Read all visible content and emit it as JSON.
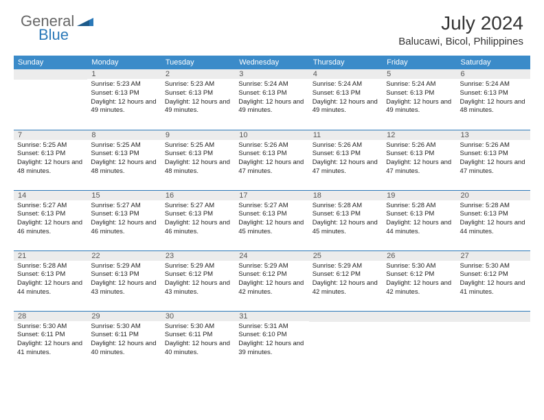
{
  "logo": {
    "text_general": "General",
    "text_blue": "Blue"
  },
  "header": {
    "month_title": "July 2024",
    "location": "Balucawi, Bicol, Philippines"
  },
  "colors": {
    "header_bg": "#3b8bc9",
    "header_text": "#ffffff",
    "row_border": "#2a78b8",
    "daynum_bg": "#ececec",
    "body_text": "#222222",
    "logo_gray": "#666666",
    "logo_blue": "#2a78b8"
  },
  "fonts": {
    "month_title_size": 28,
    "location_size": 15,
    "th_size": 11,
    "daynum_size": 11,
    "body_size": 9.5
  },
  "day_labels": [
    "Sunday",
    "Monday",
    "Tuesday",
    "Wednesday",
    "Thursday",
    "Friday",
    "Saturday"
  ],
  "weeks": [
    [
      null,
      {
        "n": "1",
        "sunrise": "5:23 AM",
        "sunset": "6:13 PM",
        "daylight": "12 hours and 49 minutes."
      },
      {
        "n": "2",
        "sunrise": "5:23 AM",
        "sunset": "6:13 PM",
        "daylight": "12 hours and 49 minutes."
      },
      {
        "n": "3",
        "sunrise": "5:24 AM",
        "sunset": "6:13 PM",
        "daylight": "12 hours and 49 minutes."
      },
      {
        "n": "4",
        "sunrise": "5:24 AM",
        "sunset": "6:13 PM",
        "daylight": "12 hours and 49 minutes."
      },
      {
        "n": "5",
        "sunrise": "5:24 AM",
        "sunset": "6:13 PM",
        "daylight": "12 hours and 49 minutes."
      },
      {
        "n": "6",
        "sunrise": "5:24 AM",
        "sunset": "6:13 PM",
        "daylight": "12 hours and 48 minutes."
      }
    ],
    [
      {
        "n": "7",
        "sunrise": "5:25 AM",
        "sunset": "6:13 PM",
        "daylight": "12 hours and 48 minutes."
      },
      {
        "n": "8",
        "sunrise": "5:25 AM",
        "sunset": "6:13 PM",
        "daylight": "12 hours and 48 minutes."
      },
      {
        "n": "9",
        "sunrise": "5:25 AM",
        "sunset": "6:13 PM",
        "daylight": "12 hours and 48 minutes."
      },
      {
        "n": "10",
        "sunrise": "5:26 AM",
        "sunset": "6:13 PM",
        "daylight": "12 hours and 47 minutes."
      },
      {
        "n": "11",
        "sunrise": "5:26 AM",
        "sunset": "6:13 PM",
        "daylight": "12 hours and 47 minutes."
      },
      {
        "n": "12",
        "sunrise": "5:26 AM",
        "sunset": "6:13 PM",
        "daylight": "12 hours and 47 minutes."
      },
      {
        "n": "13",
        "sunrise": "5:26 AM",
        "sunset": "6:13 PM",
        "daylight": "12 hours and 47 minutes."
      }
    ],
    [
      {
        "n": "14",
        "sunrise": "5:27 AM",
        "sunset": "6:13 PM",
        "daylight": "12 hours and 46 minutes."
      },
      {
        "n": "15",
        "sunrise": "5:27 AM",
        "sunset": "6:13 PM",
        "daylight": "12 hours and 46 minutes."
      },
      {
        "n": "16",
        "sunrise": "5:27 AM",
        "sunset": "6:13 PM",
        "daylight": "12 hours and 46 minutes."
      },
      {
        "n": "17",
        "sunrise": "5:27 AM",
        "sunset": "6:13 PM",
        "daylight": "12 hours and 45 minutes."
      },
      {
        "n": "18",
        "sunrise": "5:28 AM",
        "sunset": "6:13 PM",
        "daylight": "12 hours and 45 minutes."
      },
      {
        "n": "19",
        "sunrise": "5:28 AM",
        "sunset": "6:13 PM",
        "daylight": "12 hours and 44 minutes."
      },
      {
        "n": "20",
        "sunrise": "5:28 AM",
        "sunset": "6:13 PM",
        "daylight": "12 hours and 44 minutes."
      }
    ],
    [
      {
        "n": "21",
        "sunrise": "5:28 AM",
        "sunset": "6:13 PM",
        "daylight": "12 hours and 44 minutes."
      },
      {
        "n": "22",
        "sunrise": "5:29 AM",
        "sunset": "6:13 PM",
        "daylight": "12 hours and 43 minutes."
      },
      {
        "n": "23",
        "sunrise": "5:29 AM",
        "sunset": "6:12 PM",
        "daylight": "12 hours and 43 minutes."
      },
      {
        "n": "24",
        "sunrise": "5:29 AM",
        "sunset": "6:12 PM",
        "daylight": "12 hours and 42 minutes."
      },
      {
        "n": "25",
        "sunrise": "5:29 AM",
        "sunset": "6:12 PM",
        "daylight": "12 hours and 42 minutes."
      },
      {
        "n": "26",
        "sunrise": "5:30 AM",
        "sunset": "6:12 PM",
        "daylight": "12 hours and 42 minutes."
      },
      {
        "n": "27",
        "sunrise": "5:30 AM",
        "sunset": "6:12 PM",
        "daylight": "12 hours and 41 minutes."
      }
    ],
    [
      {
        "n": "28",
        "sunrise": "5:30 AM",
        "sunset": "6:11 PM",
        "daylight": "12 hours and 41 minutes."
      },
      {
        "n": "29",
        "sunrise": "5:30 AM",
        "sunset": "6:11 PM",
        "daylight": "12 hours and 40 minutes."
      },
      {
        "n": "30",
        "sunrise": "5:30 AM",
        "sunset": "6:11 PM",
        "daylight": "12 hours and 40 minutes."
      },
      {
        "n": "31",
        "sunrise": "5:31 AM",
        "sunset": "6:10 PM",
        "daylight": "12 hours and 39 minutes."
      },
      null,
      null,
      null
    ]
  ]
}
